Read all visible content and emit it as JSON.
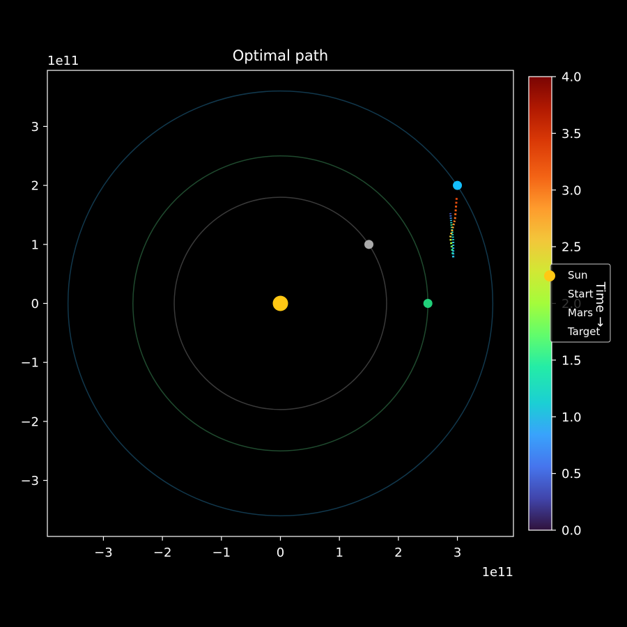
{
  "chart_data": {
    "type": "scatter",
    "title": "Optimal path",
    "x_axis": {
      "ticks": [
        -3,
        -2,
        -1,
        0,
        1,
        2,
        3
      ],
      "tick_labels": [
        "−3",
        "−2",
        "−1",
        "0",
        "1",
        "2",
        "3"
      ],
      "offset_text": "1e11",
      "range": [
        -3.95,
        3.95
      ]
    },
    "y_axis": {
      "ticks": [
        -3,
        -2,
        -1,
        0,
        1,
        2,
        3
      ],
      "tick_labels": [
        "−3",
        "−2",
        "−1",
        "0",
        "1",
        "2",
        "3"
      ],
      "offset_text": "1e11",
      "range": [
        -3.95,
        3.95
      ]
    },
    "grid": false,
    "orbits": [
      {
        "radius": 1.8,
        "color": "#3a3a3a"
      },
      {
        "radius": 2.5,
        "color": "#1f4a2e"
      },
      {
        "radius": 3.6,
        "color": "#11384d"
      }
    ],
    "bodies": [
      {
        "name": "Sun",
        "x": 0.0,
        "y": 0.0,
        "color": "#ffc814",
        "size": "large"
      },
      {
        "name": "Start",
        "x": 1.5,
        "y": 1.0,
        "color": "#aaaaaa",
        "size": "small"
      },
      {
        "name": "Mars",
        "x": 2.5,
        "y": 0.0,
        "color": "#21d07a",
        "size": "small"
      },
      {
        "name": "Target",
        "x": 3.0,
        "y": 2.0,
        "color": "#14bfff",
        "size": "small"
      }
    ],
    "trajectories": [
      {
        "points": [
          [
            2.93,
            0.78
          ],
          [
            2.93,
            1.07
          ],
          [
            2.9,
            1.32
          ],
          [
            2.88,
            1.55
          ]
        ],
        "t": [
          0.9,
          1.1,
          1.5,
          0.1
        ]
      },
      {
        "points": [
          [
            2.93,
            0.78
          ],
          [
            2.88,
            1.12
          ],
          [
            2.96,
            1.43
          ],
          [
            2.99,
            1.82
          ]
        ],
        "t": [
          1.05,
          2.5,
          3.1,
          3.4
        ]
      }
    ],
    "colorbar": {
      "label": "Time →",
      "range": [
        0.0,
        4.0
      ],
      "ticks": [
        0.0,
        0.5,
        1.0,
        1.5,
        2.0,
        2.5,
        3.0,
        3.5,
        4.0
      ],
      "tick_labels": [
        "0.0",
        "0.5",
        "1.0",
        "1.5",
        "2.0",
        "2.5",
        "3.0",
        "3.5",
        "4.0"
      ],
      "colormap": "turbo"
    },
    "legend": {
      "placement": "right",
      "entries": [
        {
          "label": "Sun",
          "color": "#ffc814"
        },
        {
          "label": "Start",
          "color": "#aaaaaa"
        },
        {
          "label": "Mars",
          "color": "#21d07a"
        },
        {
          "label": "Target",
          "color": "#14bfff"
        }
      ]
    }
  }
}
